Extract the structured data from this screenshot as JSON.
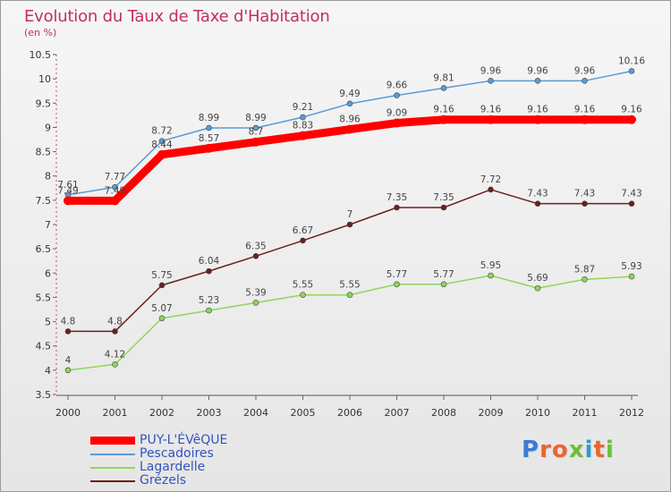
{
  "title": "Evolution du Taux de Taxe d'Habitation",
  "subtitle": "(en %)",
  "logo_text": "Proxiti",
  "chart_data": {
    "type": "line",
    "title": "Evolution du Taux de Taxe d'Habitation",
    "ylabel": "(en %)",
    "xlabel": "",
    "ylim": [
      3.5,
      10.5
    ],
    "yticks": [
      "3.5",
      "4",
      "4.5",
      "5",
      "5.5",
      "6",
      "6.5",
      "7",
      "7.5",
      "8",
      "8.5",
      "9",
      "9.5",
      "10",
      "10.5"
    ],
    "categories": [
      "2000",
      "2001",
      "2002",
      "2003",
      "2004",
      "2005",
      "2006",
      "2007",
      "2008",
      "2009",
      "2010",
      "2011",
      "2012"
    ],
    "grid": false,
    "legend_position": "bottom-left",
    "series": [
      {
        "name": "Pescadoires",
        "color": "#5b9bd5",
        "values": [
          7.61,
          7.77,
          8.72,
          8.99,
          8.99,
          9.21,
          9.49,
          9.66,
          9.81,
          9.96,
          9.96,
          9.96,
          10.16
        ],
        "labels": [
          "7.61",
          "7.77",
          "8.72",
          "8.99",
          "8.99",
          "9.21",
          "9.49",
          "9.66",
          "9.81",
          "9.96",
          "9.96",
          "9.96",
          "10.16"
        ]
      },
      {
        "name": "Grézels",
        "color": "#6b1f1f",
        "values": [
          4.8,
          4.8,
          5.75,
          6.04,
          6.35,
          6.67,
          7,
          7.35,
          7.35,
          7.72,
          7.43,
          7.43,
          7.43
        ],
        "labels": [
          "4.8",
          "4.8",
          "5.75",
          "6.04",
          "6.35",
          "6.67",
          "7",
          "7.35",
          "7.35",
          "7.72",
          "7.43",
          "7.43",
          "7.43"
        ]
      },
      {
        "name": "Lagardelle",
        "color": "#8fd65c",
        "values": [
          4,
          4.12,
          5.07,
          5.23,
          5.39,
          5.55,
          5.55,
          5.77,
          5.77,
          5.95,
          5.69,
          5.87,
          5.93
        ],
        "labels": [
          "4",
          "4.12",
          "5.07",
          "5.23",
          "5.39",
          "5.55",
          "5.55",
          "5.77",
          "5.77",
          "5.95",
          "5.69",
          "5.87",
          "5.93"
        ]
      },
      {
        "name": "PUY-L'ÉVêQUE",
        "color": "#ff0000",
        "values": [
          7.49,
          7.49,
          8.44,
          8.57,
          8.7,
          8.83,
          8.96,
          9.09,
          9.16,
          9.16,
          9.16,
          9.16,
          9.16
        ],
        "labels": [
          "7.49",
          "7.49",
          "8.44",
          "8.57",
          "8.7",
          "8.83",
          "8.96",
          "9.09",
          "9.16",
          "9.16",
          "9.16",
          "9.16",
          "9.16"
        ]
      }
    ],
    "legend": [
      {
        "name": "PUY-L'ÉVêQUE",
        "color": "#ff0000"
      },
      {
        "name": "Pescadoires",
        "color": "#5b9bd5"
      },
      {
        "name": "Lagardelle",
        "color": "#8fd65c"
      },
      {
        "name": "Grézels",
        "color": "#6b1f1f"
      }
    ]
  }
}
